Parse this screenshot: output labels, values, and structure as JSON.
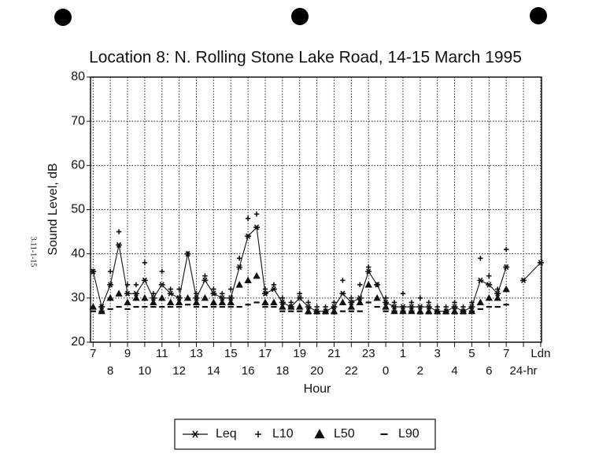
{
  "chart_data": {
    "type": "scatter",
    "title": "Location 8: N. Rolling Stone Lake Road, 14-15 March 1995",
    "ylabel": "Sound Level, dB",
    "xlabel": "Hour",
    "annotation": "3.11-1-15",
    "grid": true,
    "legend": "bottom",
    "ylim": [
      20,
      80
    ],
    "yticks": [
      20,
      30,
      40,
      50,
      60,
      70,
      80
    ],
    "xlim": [
      -0.15,
      26.05
    ],
    "xticks": [
      {
        "value": 0,
        "label": "7"
      },
      {
        "value": 1,
        "label": "8"
      },
      {
        "value": 2,
        "label": "9"
      },
      {
        "value": 3,
        "label": "10"
      },
      {
        "value": 4,
        "label": "11"
      },
      {
        "value": 5,
        "label": "12"
      },
      {
        "value": 6,
        "label": "13"
      },
      {
        "value": 7,
        "label": "14"
      },
      {
        "value": 8,
        "label": "15"
      },
      {
        "value": 9,
        "label": "16"
      },
      {
        "value": 10,
        "label": "17"
      },
      {
        "value": 11,
        "label": "18"
      },
      {
        "value": 12,
        "label": "19"
      },
      {
        "value": 13,
        "label": "20"
      },
      {
        "value": 14,
        "label": "21"
      },
      {
        "value": 15,
        "label": "22"
      },
      {
        "value": 16,
        "label": "23"
      },
      {
        "value": 17,
        "label": "0"
      },
      {
        "value": 18,
        "label": "1"
      },
      {
        "value": 19,
        "label": "2"
      },
      {
        "value": 20,
        "label": "3"
      },
      {
        "value": 21,
        "label": "4"
      },
      {
        "value": 22,
        "label": "5"
      },
      {
        "value": 23,
        "label": "6"
      },
      {
        "value": 24,
        "label": "7"
      },
      {
        "value": 25,
        "label": "24-hr"
      },
      {
        "value": 26,
        "label": "Ldn"
      }
    ],
    "x": [
      0,
      0.5,
      1,
      1.5,
      2,
      2.5,
      3,
      3.5,
      4,
      4.5,
      5,
      5.5,
      6,
      6.5,
      7,
      7.5,
      8,
      8.5,
      9,
      9.5,
      10,
      10.5,
      11,
      11.5,
      12,
      12.5,
      13,
      13.5,
      14,
      14.5,
      15,
      15.5,
      16,
      16.5,
      17,
      17.5,
      18,
      18.5,
      19,
      19.5,
      20,
      20.5,
      21,
      21.5,
      22,
      22.5,
      23,
      23.5,
      24,
      24.5,
      25,
      26
    ],
    "series": [
      {
        "name": "Leq",
        "marker": "asterisk",
        "line": true,
        "color": "#111111",
        "values": [
          36,
          28,
          33,
          42,
          31,
          31,
          34,
          30,
          33,
          31,
          30,
          40,
          30,
          34,
          31,
          30,
          30,
          37,
          44,
          46,
          31,
          32,
          29,
          28,
          30,
          28,
          27,
          27,
          28,
          31,
          29,
          30,
          36,
          33,
          29,
          28,
          28,
          28,
          28,
          28,
          27,
          27,
          28,
          27,
          28,
          34,
          33,
          31,
          37,
          null,
          34,
          38
        ]
      },
      {
        "name": "L10",
        "marker": "plus",
        "line": false,
        "color": "#111111",
        "values": [
          36,
          28,
          36,
          45,
          33,
          33,
          38,
          31,
          36,
          32,
          32,
          40,
          31,
          35,
          32,
          31,
          32,
          39,
          48,
          49,
          32,
          33,
          30,
          29,
          31,
          29,
          28,
          28,
          29,
          34,
          30,
          33,
          37,
          33,
          30,
          29,
          31,
          29,
          30,
          29,
          28,
          28,
          29,
          28,
          29,
          39,
          35,
          32,
          41,
          null,
          null,
          null
        ]
      },
      {
        "name": "L50",
        "marker": "triangle",
        "line": false,
        "color": "#111111",
        "values": [
          28,
          27,
          30,
          31,
          29,
          30,
          30,
          29,
          30,
          29,
          29,
          30,
          29,
          30,
          29,
          29,
          29,
          33,
          34,
          35,
          29,
          29,
          28,
          28,
          28,
          27,
          27,
          27,
          27,
          29,
          28,
          29,
          33,
          30,
          28,
          27,
          27,
          27,
          27,
          27,
          27,
          27,
          27,
          27,
          27,
          29,
          30,
          30,
          32,
          null,
          null,
          null
        ]
      },
      {
        "name": "L90",
        "marker": "dash",
        "line": false,
        "color": "#111111",
        "values": [
          27,
          27,
          27.5,
          28,
          27.5,
          28,
          28,
          28,
          28,
          28,
          28,
          28.5,
          28,
          28,
          28,
          28,
          28,
          28,
          28.5,
          29,
          28,
          28,
          27,
          27,
          27,
          26.5,
          26.5,
          26.5,
          26.5,
          27,
          27,
          27,
          29,
          28,
          27,
          27,
          27,
          27,
          26.5,
          26.5,
          26.5,
          26.5,
          26.5,
          26.5,
          27,
          27.5,
          28,
          28,
          28.5,
          null,
          null,
          null
        ]
      }
    ]
  }
}
